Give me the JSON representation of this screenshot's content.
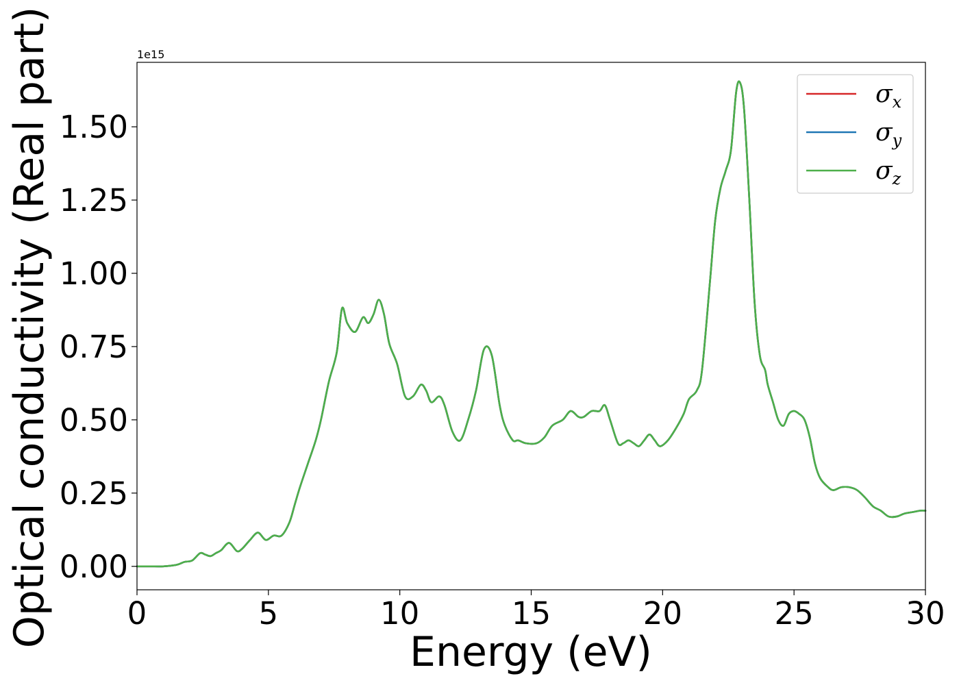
{
  "chart_data": {
    "type": "line",
    "xlabel": "Energy (eV)",
    "ylabel": "Optical conductivity (Real part)",
    "y_offset_text": "1e15",
    "y_scale_factor": 1000000000000000.0,
    "xlim": [
      0,
      30
    ],
    "ylim": [
      -0.08,
      1.72
    ],
    "x_ticks": [
      0,
      5,
      10,
      15,
      20,
      25,
      30
    ],
    "x_tick_labels": [
      "0",
      "5",
      "10",
      "15",
      "20",
      "25",
      "30"
    ],
    "y_ticks": [
      0,
      0.25,
      0.5,
      0.75,
      1.0,
      1.25,
      1.5
    ],
    "y_tick_labels": [
      "0.00",
      "0.25",
      "0.50",
      "0.75",
      "1.00",
      "1.25",
      "1.50"
    ],
    "grid": false,
    "legend_position": "top-right",
    "x": [
      0,
      0.5,
      1.0,
      1.5,
      1.8,
      2.1,
      2.4,
      2.6,
      2.8,
      3.0,
      3.2,
      3.5,
      3.8,
      4.0,
      4.3,
      4.6,
      4.9,
      5.2,
      5.5,
      5.8,
      6.0,
      6.2,
      6.5,
      6.8,
      7.0,
      7.3,
      7.6,
      7.8,
      8.0,
      8.3,
      8.6,
      8.8,
      9.0,
      9.2,
      9.4,
      9.6,
      9.9,
      10.2,
      10.5,
      10.8,
      11.0,
      11.2,
      11.5,
      11.7,
      12.0,
      12.3,
      12.6,
      12.9,
      13.2,
      13.5,
      13.8,
      14.0,
      14.3,
      14.5,
      14.8,
      15.2,
      15.5,
      15.8,
      16.2,
      16.5,
      16.8,
      17.0,
      17.3,
      17.6,
      17.8,
      18.0,
      18.3,
      18.5,
      18.7,
      18.9,
      19.1,
      19.3,
      19.5,
      19.7,
      19.9,
      20.2,
      20.5,
      20.8,
      21.0,
      21.3,
      21.5,
      21.8,
      22.0,
      22.2,
      22.4,
      22.6,
      22.8,
      22.95,
      23.1,
      23.3,
      23.5,
      23.7,
      23.9,
      24.0,
      24.2,
      24.4,
      24.6,
      24.8,
      25.0,
      25.2,
      25.4,
      25.6,
      25.8,
      26.0,
      26.3,
      26.5,
      26.8,
      27.1,
      27.4,
      27.7,
      28.0,
      28.3,
      28.6,
      28.9,
      29.2,
      29.5,
      29.8,
      30.0
    ],
    "series": [
      {
        "name": "σx",
        "color": "#d62728",
        "values": [
          0.0,
          0.0,
          0.0,
          0.005,
          0.015,
          0.02,
          0.045,
          0.04,
          0.035,
          0.045,
          0.055,
          0.08,
          0.052,
          0.06,
          0.09,
          0.115,
          0.09,
          0.105,
          0.105,
          0.15,
          0.21,
          0.27,
          0.35,
          0.43,
          0.5,
          0.63,
          0.73,
          0.88,
          0.83,
          0.8,
          0.85,
          0.83,
          0.86,
          0.91,
          0.86,
          0.76,
          0.69,
          0.58,
          0.58,
          0.62,
          0.6,
          0.56,
          0.58,
          0.55,
          0.46,
          0.43,
          0.5,
          0.6,
          0.74,
          0.72,
          0.55,
          0.48,
          0.43,
          0.43,
          0.42,
          0.42,
          0.44,
          0.48,
          0.5,
          0.53,
          0.51,
          0.51,
          0.53,
          0.53,
          0.55,
          0.5,
          0.42,
          0.42,
          0.43,
          0.42,
          0.41,
          0.43,
          0.45,
          0.43,
          0.41,
          0.43,
          0.47,
          0.52,
          0.57,
          0.6,
          0.67,
          0.97,
          1.18,
          1.29,
          1.35,
          1.42,
          1.62,
          1.65,
          1.56,
          1.25,
          0.9,
          0.72,
          0.67,
          0.62,
          0.56,
          0.5,
          0.48,
          0.52,
          0.53,
          0.52,
          0.5,
          0.44,
          0.35,
          0.3,
          0.27,
          0.26,
          0.27,
          0.27,
          0.26,
          0.235,
          0.205,
          0.19,
          0.17,
          0.17,
          0.18,
          0.185,
          0.19,
          0.19
        ]
      },
      {
        "name": "σy",
        "color": "#1f77b4",
        "values": [
          0.0,
          0.0,
          0.0,
          0.005,
          0.015,
          0.02,
          0.045,
          0.04,
          0.035,
          0.045,
          0.055,
          0.08,
          0.052,
          0.06,
          0.09,
          0.115,
          0.09,
          0.105,
          0.105,
          0.15,
          0.21,
          0.27,
          0.35,
          0.43,
          0.5,
          0.63,
          0.73,
          0.88,
          0.83,
          0.8,
          0.85,
          0.83,
          0.86,
          0.91,
          0.86,
          0.76,
          0.69,
          0.58,
          0.58,
          0.62,
          0.6,
          0.56,
          0.58,
          0.55,
          0.46,
          0.43,
          0.5,
          0.6,
          0.74,
          0.72,
          0.55,
          0.48,
          0.43,
          0.43,
          0.42,
          0.42,
          0.44,
          0.48,
          0.5,
          0.53,
          0.51,
          0.51,
          0.53,
          0.53,
          0.55,
          0.5,
          0.42,
          0.42,
          0.43,
          0.42,
          0.41,
          0.43,
          0.45,
          0.43,
          0.41,
          0.43,
          0.47,
          0.52,
          0.57,
          0.6,
          0.67,
          0.97,
          1.18,
          1.29,
          1.35,
          1.42,
          1.62,
          1.65,
          1.56,
          1.25,
          0.9,
          0.72,
          0.67,
          0.62,
          0.56,
          0.5,
          0.48,
          0.52,
          0.53,
          0.52,
          0.5,
          0.44,
          0.35,
          0.3,
          0.27,
          0.26,
          0.27,
          0.27,
          0.26,
          0.235,
          0.205,
          0.19,
          0.17,
          0.17,
          0.18,
          0.185,
          0.19,
          0.19
        ]
      },
      {
        "name": "σz",
        "color": "#4daf4a",
        "values": [
          0.0,
          0.0,
          0.0,
          0.005,
          0.015,
          0.02,
          0.045,
          0.04,
          0.035,
          0.045,
          0.055,
          0.08,
          0.052,
          0.06,
          0.09,
          0.115,
          0.09,
          0.105,
          0.105,
          0.15,
          0.21,
          0.27,
          0.35,
          0.43,
          0.5,
          0.63,
          0.73,
          0.88,
          0.83,
          0.8,
          0.85,
          0.83,
          0.86,
          0.91,
          0.86,
          0.76,
          0.69,
          0.58,
          0.58,
          0.62,
          0.6,
          0.56,
          0.58,
          0.55,
          0.46,
          0.43,
          0.5,
          0.6,
          0.74,
          0.72,
          0.55,
          0.48,
          0.43,
          0.43,
          0.42,
          0.42,
          0.44,
          0.48,
          0.5,
          0.53,
          0.51,
          0.51,
          0.53,
          0.53,
          0.55,
          0.5,
          0.42,
          0.42,
          0.43,
          0.42,
          0.41,
          0.43,
          0.45,
          0.43,
          0.41,
          0.43,
          0.47,
          0.52,
          0.57,
          0.6,
          0.67,
          0.97,
          1.18,
          1.29,
          1.35,
          1.42,
          1.62,
          1.65,
          1.56,
          1.25,
          0.9,
          0.72,
          0.67,
          0.62,
          0.56,
          0.5,
          0.48,
          0.52,
          0.53,
          0.52,
          0.5,
          0.44,
          0.35,
          0.3,
          0.27,
          0.26,
          0.27,
          0.27,
          0.26,
          0.235,
          0.205,
          0.19,
          0.17,
          0.17,
          0.18,
          0.185,
          0.19,
          0.19
        ]
      }
    ],
    "legend": [
      {
        "symbol": "σ",
        "subscript": "x",
        "color": "#d62728"
      },
      {
        "symbol": "σ",
        "subscript": "y",
        "color": "#1f77b4"
      },
      {
        "symbol": "σ",
        "subscript": "z",
        "color": "#4daf4a"
      }
    ]
  }
}
